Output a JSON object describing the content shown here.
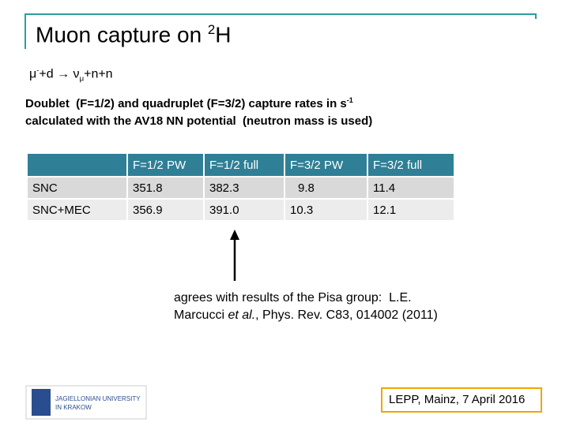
{
  "title": {
    "text": "Muon capture on ",
    "sup": "2",
    "tail": "H"
  },
  "reaction": {
    "mu": "μ",
    "mu_sup": "-",
    "middle": "+d → ν",
    "nu_sub": "μ",
    "tail": "+n+n"
  },
  "description": {
    "line1": "Doublet  (F=1/2) and quadruplet (F=3/2) capture rates in s",
    "line1_sup": "-1",
    "line2": "calculated with the AV18 NN potential  (neutron mass is used)"
  },
  "table": {
    "header": [
      "F=1/2 PW",
      "F=1/2  full",
      "F=3/2 PW",
      "F=3/2 full"
    ],
    "rows": [
      [
        "SNC",
        "351.8",
        "382.3",
        "9.8",
        "11.4"
      ],
      [
        "SNC+MEC",
        "356.9",
        "391.0",
        "10.3",
        "12.1"
      ]
    ]
  },
  "note": {
    "line1": "agrees with results of the Pisa group:  L.E.",
    "line2_start": "Marcucci ",
    "italic": "et al.",
    "line2_end": ", Phys. Rev. C83, 014002 (2011)"
  },
  "logo": {
    "line1": "JAGIELLONIAN UNIVERSITY",
    "line2": "IN KRAKOW"
  },
  "footer": "LEPP, Mainz, 7 April 2016"
}
